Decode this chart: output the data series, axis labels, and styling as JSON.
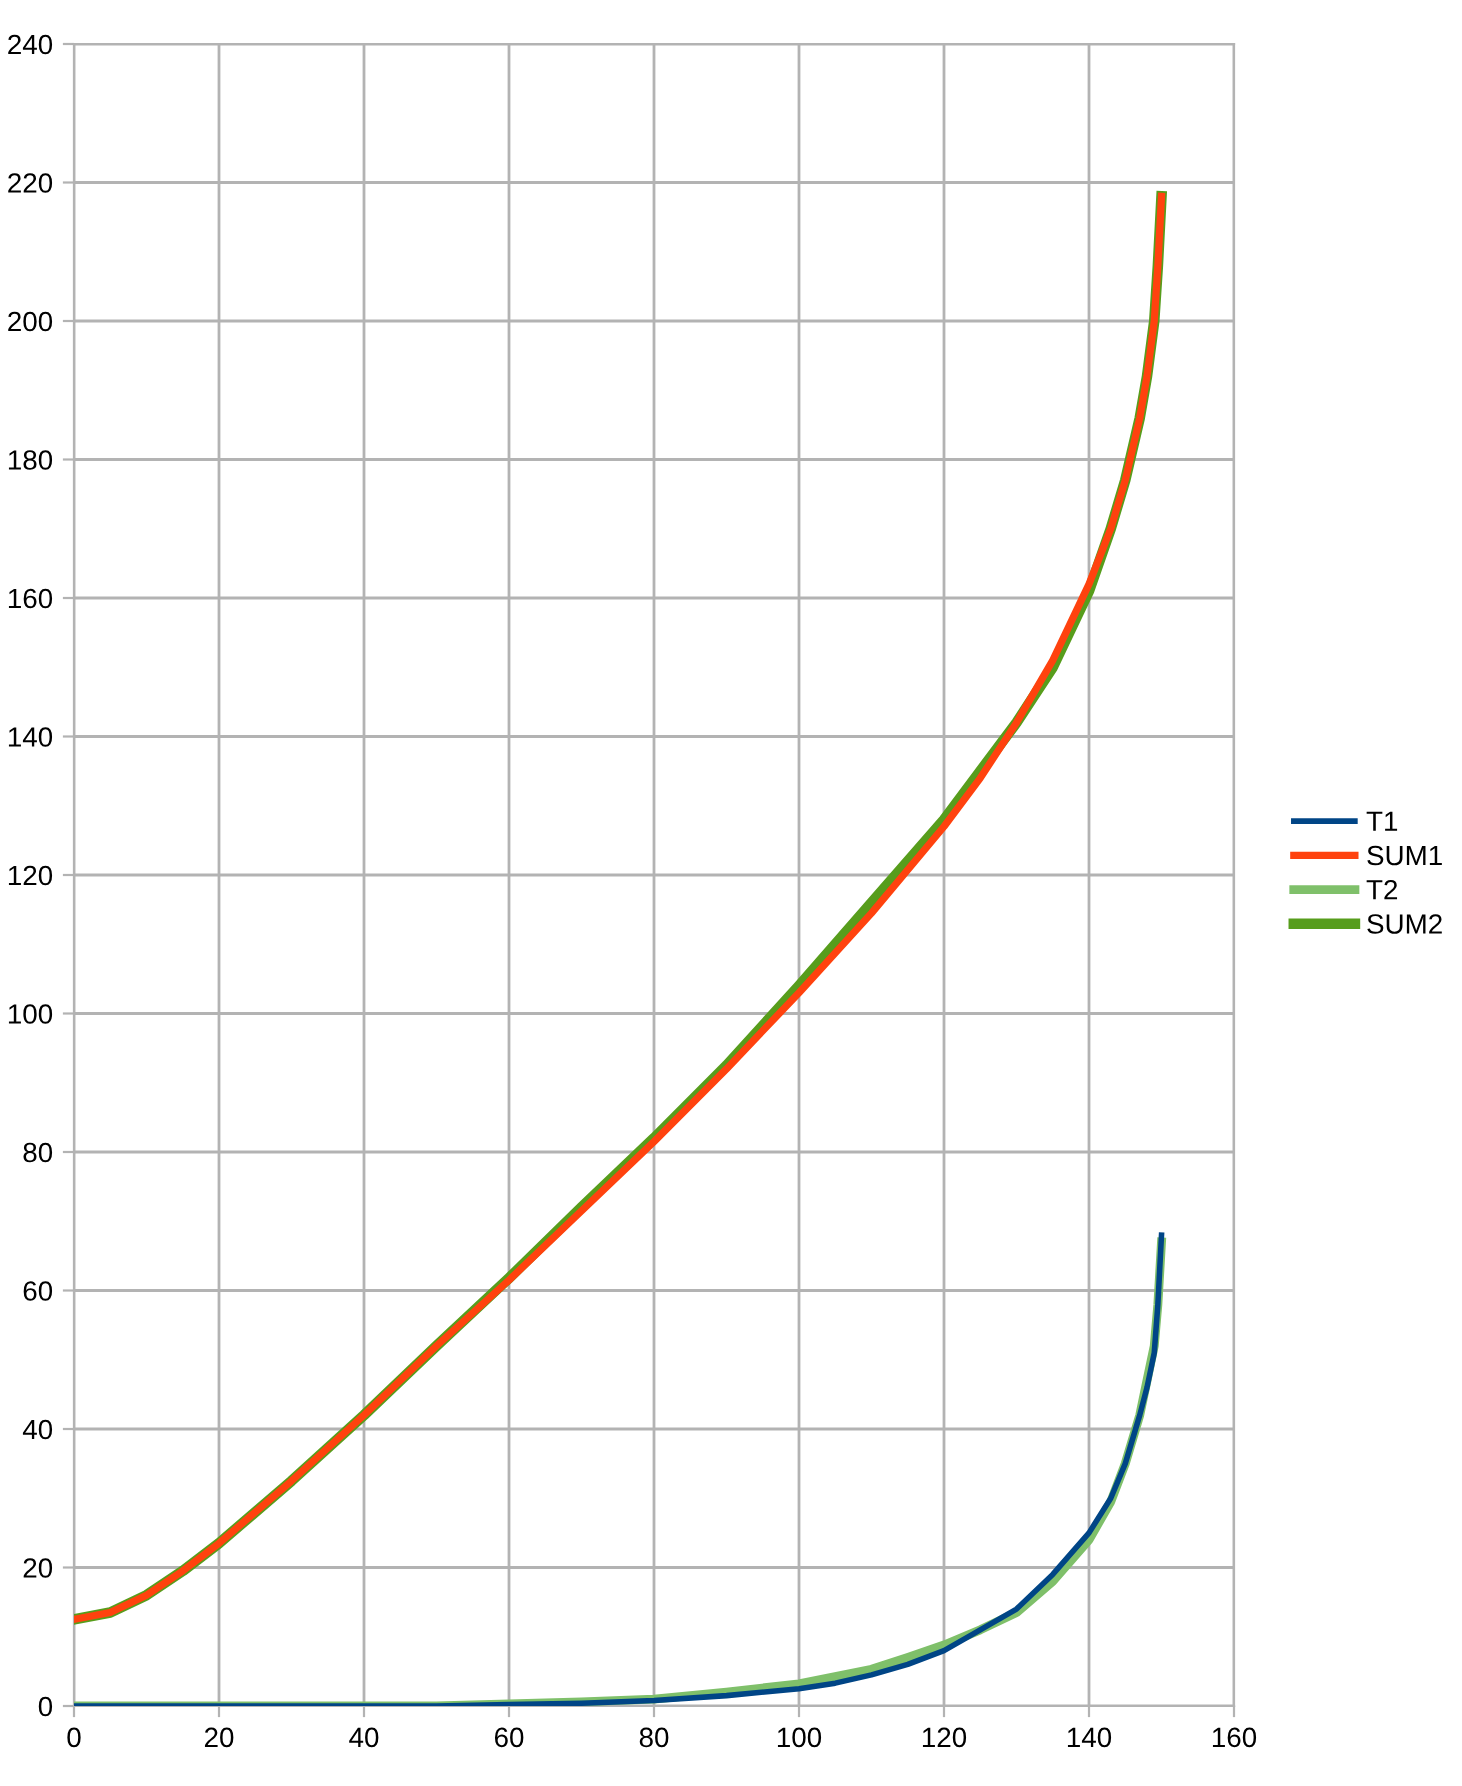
{
  "chart_data": {
    "type": "line",
    "xlim": [
      0,
      160
    ],
    "xticks": [
      0,
      20,
      40,
      60,
      80,
      100,
      120,
      140,
      160
    ],
    "ylim": [
      0,
      240
    ],
    "yticks": [
      0,
      20,
      40,
      60,
      80,
      100,
      120,
      140,
      160,
      180,
      200,
      220,
      240
    ],
    "grid": true,
    "legend": "right",
    "marker": "none",
    "line_style": "solid",
    "series": [
      {
        "name": "T1",
        "color": "#004586",
        "x": [
          0,
          10,
          20,
          30,
          40,
          50,
          60,
          70,
          80,
          90,
          100,
          105,
          110,
          115,
          120,
          125,
          130,
          135,
          140,
          143,
          145,
          147,
          148,
          149,
          149.5,
          150
        ],
        "values": [
          0,
          0,
          0,
          0,
          0,
          0,
          0.2,
          0.4,
          0.8,
          1.5,
          2.5,
          3.3,
          4.5,
          6,
          8,
          11,
          14,
          19,
          25,
          30,
          35,
          42,
          46,
          51,
          58,
          68
        ]
      },
      {
        "name": "SUM1",
        "color": "#ff420e",
        "x": [
          0,
          5,
          10,
          15,
          20,
          30,
          40,
          50,
          60,
          70,
          80,
          90,
          100,
          110,
          120,
          125,
          130,
          135,
          140,
          143,
          145,
          147,
          148,
          149,
          149.5,
          150
        ],
        "values": [
          12.5,
          13.5,
          16,
          19.5,
          23.5,
          32.5,
          42,
          52,
          61.5,
          71.5,
          81.5,
          92,
          103,
          114.5,
          127,
          134,
          142,
          151,
          162,
          170,
          177,
          186,
          192,
          200,
          208,
          218
        ]
      },
      {
        "name": "T2",
        "color": "#7fc06a",
        "x": [
          0,
          10,
          20,
          30,
          40,
          50,
          60,
          70,
          80,
          90,
          100,
          110,
          115,
          120,
          125,
          130,
          135,
          140,
          143,
          145,
          147,
          148,
          149,
          149.5,
          150
        ],
        "values": [
          0,
          0,
          0,
          0,
          0,
          0,
          0.3,
          0.6,
          1,
          2,
          3.2,
          5.3,
          7,
          8.8,
          11,
          13.5,
          18,
          24,
          29.5,
          35,
          42,
          47,
          52,
          58,
          67
        ]
      },
      {
        "name": "SUM2",
        "color": "#579d1c",
        "x": [
          0,
          5,
          10,
          15,
          20,
          30,
          40,
          50,
          60,
          70,
          80,
          90,
          100,
          110,
          120,
          130,
          135,
          140,
          143,
          145,
          147,
          148,
          149,
          149.5,
          150
        ],
        "values": [
          12.5,
          13.5,
          16,
          19.5,
          23.5,
          32.5,
          42,
          52,
          61.8,
          72,
          82,
          92.5,
          104,
          116,
          128,
          142,
          150,
          161,
          170,
          177,
          186,
          192,
          200,
          208,
          218
        ]
      }
    ]
  }
}
